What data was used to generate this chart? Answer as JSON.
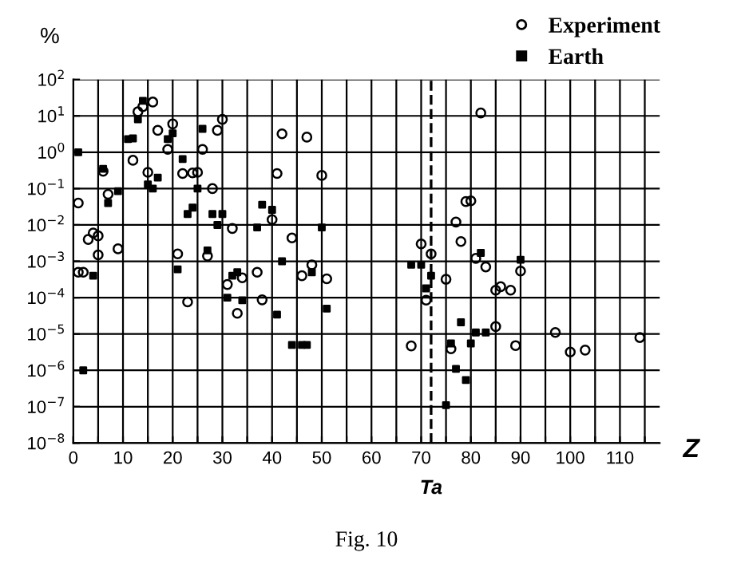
{
  "chart_data": {
    "type": "scatter",
    "xlabel": "Z",
    "ylabel": "%",
    "log": "y",
    "xlim": [
      0,
      118
    ],
    "ylim": [
      1e-08,
      100
    ],
    "xticks": [
      0,
      {
        "value": 5,
        "label": null
      },
      10,
      {
        "value": 15,
        "label": null
      },
      20,
      {
        "value": 25,
        "label": null
      },
      30,
      {
        "value": 35,
        "label": null
      },
      40,
      {
        "value": 45,
        "label": null
      },
      50,
      {
        "value": 55,
        "label": null
      },
      60,
      {
        "value": 65,
        "label": null
      },
      70,
      {
        "value": 75,
        "label": null
      },
      80,
      {
        "value": 85,
        "label": null
      },
      90,
      {
        "value": 95,
        "label": null
      },
      100,
      {
        "value": 105,
        "label": null
      },
      110,
      {
        "value": 115,
        "label": null
      }
    ],
    "yticks": [
      {
        "value": 1e-08,
        "label": "10$^{−8}$"
      },
      {
        "value": 1e-07,
        "label": "10$^{−7}$"
      },
      {
        "value": 1e-06,
        "label": "10$^{−6}$"
      },
      {
        "value": 1e-05,
        "label": "10$^{−5}$"
      },
      {
        "value": 0.0001,
        "label": "10$^{−4}$"
      },
      {
        "value": 0.001,
        "label": "10$^{−3}$"
      },
      {
        "value": 0.01,
        "label": "10$^{−2}$"
      },
      {
        "value": 0.1,
        "label": "10$^{−1}$"
      },
      {
        "value": 1,
        "label": "10$^{0}$"
      },
      {
        "value": 10,
        "label": "10$^{1}$"
      },
      {
        "value": 100,
        "label": "10$^{2}$"
      }
    ],
    "grid": true,
    "legend": "top right",
    "series": [
      {
        "name": "Experiment",
        "color": "#000000",
        "marker": "circle",
        "x": [
          1,
          1,
          2,
          3,
          4,
          5,
          5,
          6,
          7,
          9,
          12,
          13,
          14,
          16,
          15,
          17,
          19,
          20,
          21,
          22,
          23,
          24,
          25,
          26,
          27,
          28,
          29,
          30,
          32,
          31,
          33,
          34,
          37,
          38,
          40,
          41,
          42,
          44,
          46,
          47,
          48,
          50,
          51,
          68,
          70,
          71,
          72,
          75,
          76,
          77,
          78,
          79,
          80,
          82,
          81,
          83,
          85,
          86,
          88,
          90,
          85,
          89,
          97,
          100,
          103,
          114
        ],
        "values": [
          0.04,
          0.0005,
          0.0005,
          0.004,
          0.006,
          0.005,
          0.0015,
          0.3,
          0.07,
          0.0022,
          0.6,
          13,
          18,
          24,
          0.28,
          4,
          1.2,
          6,
          0.0016,
          0.26,
          7.6e-05,
          0.27,
          0.28,
          1.2,
          0.0014,
          0.1,
          4,
          8,
          0.008,
          0.00023,
          3.7e-05,
          0.00035,
          0.0005,
          8.7e-05,
          0.014,
          0.26,
          3.2,
          0.0044,
          0.0004,
          2.6,
          0.0008,
          0.23,
          0.00033,
          4.7e-06,
          0.003,
          8.5e-05,
          0.0016,
          0.00032,
          3.9e-06,
          0.012,
          0.0035,
          0.044,
          0.046,
          12,
          0.0012,
          0.0007,
          0.00016,
          0.0002,
          0.00016,
          0.00054,
          1.6e-05,
          4.8e-06,
          1.1e-05,
          3.2e-06,
          3.6e-06,
          8e-06
        ]
      },
      {
        "name": "Earth",
        "color": "#000000",
        "marker": "square",
        "x": [
          1,
          2,
          4,
          6,
          7,
          9,
          11,
          12,
          13,
          14,
          15,
          16,
          17,
          19,
          20,
          21,
          22,
          23,
          24,
          25,
          26,
          27,
          28,
          29,
          30,
          31,
          32,
          33,
          34,
          37,
          38,
          40,
          41,
          42,
          44,
          46,
          47,
          48,
          50,
          51,
          68,
          70,
          71,
          72,
          75,
          76,
          77,
          78,
          79,
          80,
          81,
          82,
          83,
          90
        ],
        "values": [
          1.0,
          1e-06,
          0.0004,
          0.35,
          0.04,
          0.085,
          2.3,
          2.4,
          8,
          26,
          0.13,
          0.1,
          0.2,
          2.3,
          3.3,
          0.0006,
          0.65,
          0.02,
          0.03,
          0.1,
          4.4,
          0.002,
          0.02,
          0.01,
          0.02,
          0.0001,
          0.0004,
          0.0005,
          8.5e-05,
          0.0085,
          0.036,
          0.026,
          3.4e-05,
          0.001,
          5e-06,
          5e-06,
          5e-06,
          0.0005,
          0.0085,
          5e-05,
          0.0008,
          0.0008,
          0.00018,
          0.0004,
          1.1e-07,
          5.5e-06,
          1.1e-06,
          2.1e-05,
          5.4e-07,
          5.5e-06,
          1.1e-05,
          0.0017,
          1.1e-05,
          0.0011
        ]
      }
    ],
    "ref_lines": [
      {
        "axis": "x",
        "value": 72,
        "label": "Ta",
        "color": "#000000",
        "line_style": "dashed"
      }
    ],
    "annotations": [
      "Fig. 10"
    ]
  }
}
